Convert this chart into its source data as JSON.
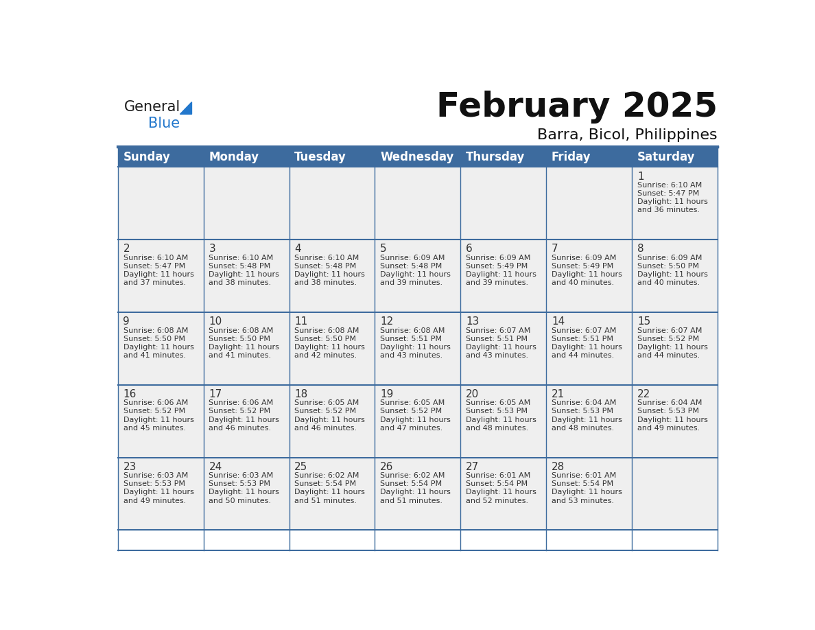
{
  "title": "February 2025",
  "subtitle": "Barra, Bicol, Philippines",
  "header_color": "#3d6b9e",
  "header_text_color": "#ffffff",
  "cell_bg_color": "#efefef",
  "border_color": "#3d6b9e",
  "text_color": "#333333",
  "day_headers": [
    "Sunday",
    "Monday",
    "Tuesday",
    "Wednesday",
    "Thursday",
    "Friday",
    "Saturday"
  ],
  "logo_color1": "#1a1a1a",
  "logo_color2": "#2277cc",
  "logo_triangle_color": "#2277cc",
  "title_fontsize": 36,
  "subtitle_fontsize": 16,
  "header_fontsize": 12,
  "day_num_fontsize": 11,
  "cell_text_fontsize": 8,
  "calendar_data": [
    [
      null,
      null,
      null,
      null,
      null,
      null,
      {
        "day": 1,
        "sunrise": "6:10 AM",
        "sunset": "5:47 PM",
        "daylight": "11 hours and 36 minutes."
      }
    ],
    [
      {
        "day": 2,
        "sunrise": "6:10 AM",
        "sunset": "5:47 PM",
        "daylight": "11 hours and 37 minutes."
      },
      {
        "day": 3,
        "sunrise": "6:10 AM",
        "sunset": "5:48 PM",
        "daylight": "11 hours and 38 minutes."
      },
      {
        "day": 4,
        "sunrise": "6:10 AM",
        "sunset": "5:48 PM",
        "daylight": "11 hours and 38 minutes."
      },
      {
        "day": 5,
        "sunrise": "6:09 AM",
        "sunset": "5:48 PM",
        "daylight": "11 hours and 39 minutes."
      },
      {
        "day": 6,
        "sunrise": "6:09 AM",
        "sunset": "5:49 PM",
        "daylight": "11 hours and 39 minutes."
      },
      {
        "day": 7,
        "sunrise": "6:09 AM",
        "sunset": "5:49 PM",
        "daylight": "11 hours and 40 minutes."
      },
      {
        "day": 8,
        "sunrise": "6:09 AM",
        "sunset": "5:50 PM",
        "daylight": "11 hours and 40 minutes."
      }
    ],
    [
      {
        "day": 9,
        "sunrise": "6:08 AM",
        "sunset": "5:50 PM",
        "daylight": "11 hours and 41 minutes."
      },
      {
        "day": 10,
        "sunrise": "6:08 AM",
        "sunset": "5:50 PM",
        "daylight": "11 hours and 41 minutes."
      },
      {
        "day": 11,
        "sunrise": "6:08 AM",
        "sunset": "5:50 PM",
        "daylight": "11 hours and 42 minutes."
      },
      {
        "day": 12,
        "sunrise": "6:08 AM",
        "sunset": "5:51 PM",
        "daylight": "11 hours and 43 minutes."
      },
      {
        "day": 13,
        "sunrise": "6:07 AM",
        "sunset": "5:51 PM",
        "daylight": "11 hours and 43 minutes."
      },
      {
        "day": 14,
        "sunrise": "6:07 AM",
        "sunset": "5:51 PM",
        "daylight": "11 hours and 44 minutes."
      },
      {
        "day": 15,
        "sunrise": "6:07 AM",
        "sunset": "5:52 PM",
        "daylight": "11 hours and 44 minutes."
      }
    ],
    [
      {
        "day": 16,
        "sunrise": "6:06 AM",
        "sunset": "5:52 PM",
        "daylight": "11 hours and 45 minutes."
      },
      {
        "day": 17,
        "sunrise": "6:06 AM",
        "sunset": "5:52 PM",
        "daylight": "11 hours and 46 minutes."
      },
      {
        "day": 18,
        "sunrise": "6:05 AM",
        "sunset": "5:52 PM",
        "daylight": "11 hours and 46 minutes."
      },
      {
        "day": 19,
        "sunrise": "6:05 AM",
        "sunset": "5:52 PM",
        "daylight": "11 hours and 47 minutes."
      },
      {
        "day": 20,
        "sunrise": "6:05 AM",
        "sunset": "5:53 PM",
        "daylight": "11 hours and 48 minutes."
      },
      {
        "day": 21,
        "sunrise": "6:04 AM",
        "sunset": "5:53 PM",
        "daylight": "11 hours and 48 minutes."
      },
      {
        "day": 22,
        "sunrise": "6:04 AM",
        "sunset": "5:53 PM",
        "daylight": "11 hours and 49 minutes."
      }
    ],
    [
      {
        "day": 23,
        "sunrise": "6:03 AM",
        "sunset": "5:53 PM",
        "daylight": "11 hours and 49 minutes."
      },
      {
        "day": 24,
        "sunrise": "6:03 AM",
        "sunset": "5:53 PM",
        "daylight": "11 hours and 50 minutes."
      },
      {
        "day": 25,
        "sunrise": "6:02 AM",
        "sunset": "5:54 PM",
        "daylight": "11 hours and 51 minutes."
      },
      {
        "day": 26,
        "sunrise": "6:02 AM",
        "sunset": "5:54 PM",
        "daylight": "11 hours and 51 minutes."
      },
      {
        "day": 27,
        "sunrise": "6:01 AM",
        "sunset": "5:54 PM",
        "daylight": "11 hours and 52 minutes."
      },
      {
        "day": 28,
        "sunrise": "6:01 AM",
        "sunset": "5:54 PM",
        "daylight": "11 hours and 53 minutes."
      },
      null
    ]
  ]
}
